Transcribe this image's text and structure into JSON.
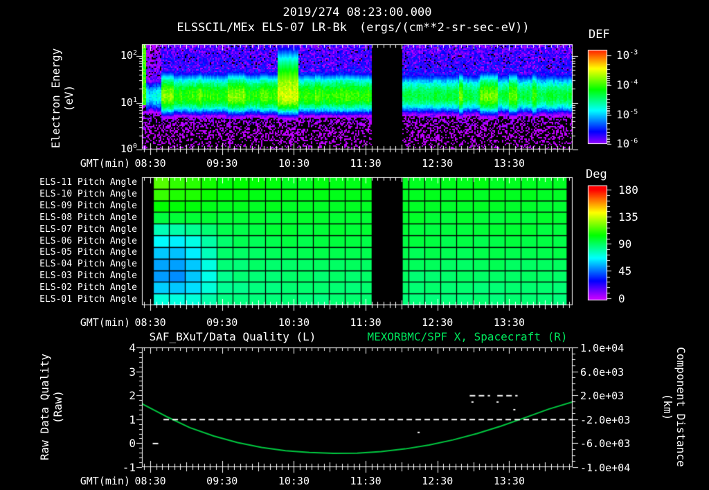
{
  "colors": {
    "background": "#000000",
    "foreground": "#ffffff",
    "title_green": "#00e65c",
    "curve_green": "#00c840",
    "axis": "#ffffff"
  },
  "header": {
    "datetime": "2019/274 08:23:00.000",
    "source": "ELSSCIL/MEx ELS-07 LR-Bk",
    "units": "(ergs/(cm**2-sr-sec-eV))"
  },
  "time_axis": {
    "label": "GMT(min)",
    "start_gmt": "08:23:00",
    "total_minutes": 360,
    "tick_labels": [
      "08:30",
      "09:30",
      "10:30",
      "11:30",
      "12:30",
      "13:30"
    ],
    "tick_minutes": [
      7,
      67,
      127,
      187,
      247,
      307
    ]
  },
  "spectrogram": {
    "ylabel_line1": "Electron Energy",
    "ylabel_line2": "(eV)",
    "ytick_exponents": [
      2,
      1,
      0
    ],
    "colorbar_title": "DEF",
    "colorbar_tick_exponents": [
      -3,
      -4,
      -5,
      -6
    ]
  },
  "pitch": {
    "row_labels": [
      "ELS-11 Pitch Angle",
      "ELS-10 Pitch Angle",
      "ELS-09 Pitch Angle",
      "ELS-08 Pitch Angle",
      "ELS-07 Pitch Angle",
      "ELS-06 Pitch Angle",
      "ELS-05 Pitch Angle",
      "ELS-04 Pitch Angle",
      "ELS-03 Pitch Angle",
      "ELS-02 Pitch Angle",
      "ELS-01 Pitch Angle"
    ],
    "colorbar_title": "Deg",
    "colorbar_ticks": [
      180,
      135,
      90,
      45,
      0
    ]
  },
  "quality": {
    "title_left": "SAF_BXuT/Data Quality (L)",
    "title_right": "MEXORBMC/SPF X, Spacecraft (R)",
    "ylabel_left_line1": "Raw Data Quality",
    "ylabel_left_line2": "(Raw)",
    "ylabel_right_line1": "Component Distance",
    "ylabel_right_line2": "(km)",
    "left_ticks": [
      4,
      3,
      2,
      1,
      0,
      -1
    ],
    "right_tick_labels": [
      "1.0e+04",
      "6.0e+03",
      "2.0e+03",
      "-2.0e+03",
      "-6.0e+03",
      "-1.0e+04"
    ],
    "right_tick_km": [
      10000,
      6000,
      2000,
      -2000,
      -6000,
      -10000
    ]
  },
  "chart_data": [
    {
      "type": "heatmap",
      "title": "ELSSCIL/MEx ELS-07 LR-Bk electron energy spectrogram",
      "xlabel": "GMT(min)",
      "ylabel": "Electron Energy (eV)",
      "x_range_gmt": [
        "08:23",
        "14:23"
      ],
      "ylog_range_ev": [
        1,
        180
      ],
      "value_scale": "log10 DEF ergs/(cm**2-sr-sec-eV)",
      "value_range_log10": [
        -6,
        -3
      ],
      "data_gaps_min": [
        [
          192,
          218
        ]
      ],
      "model": {
        "band_center_ev": 14,
        "band_peak_log10": -4.05,
        "post_gap_band_peak_log10": -4.3,
        "band_sigma_up_log": 0.27,
        "band_sigma_down_log": 0.2,
        "background_log10": -5.6,
        "background_above_ev": 32,
        "noise_floor_below_ev": 6,
        "startup_stripe_min": [
          0,
          3
        ],
        "quiet_interval_min": [
          3,
          16
        ],
        "quiet_band_peak_log10": -4.85,
        "tall_enhancement_min": [
          113,
          131
        ],
        "enhancements_min_peak": [
          [
            15,
            27,
            -3.8
          ],
          [
            45,
            50,
            -3.9
          ],
          [
            72,
            87,
            -3.8
          ],
          [
            100,
            105,
            -3.85
          ],
          [
            113,
            131,
            -3.55
          ],
          [
            145,
            149,
            -3.9
          ],
          [
            162,
            172,
            -3.95
          ],
          [
            265,
            269,
            -3.85
          ],
          [
            282,
            297,
            -3.85
          ],
          [
            307,
            314,
            -3.9
          ],
          [
            326,
            330,
            -3.95
          ]
        ]
      }
    },
    {
      "type": "heatmap",
      "title": "ELS pitch angle panels",
      "xlabel": "GMT(min)",
      "value_units": "deg",
      "value_range": [
        0,
        180
      ],
      "rows": [
        "ELS-11",
        "ELS-10",
        "ELS-09",
        "ELS-08",
        "ELS-07",
        "ELS-06",
        "ELS-05",
        "ELS-04",
        "ELS-03",
        "ELS-02",
        "ELS-01"
      ],
      "columns": 26,
      "blank_min": [
        [
          0,
          9
        ],
        [
          192,
          218
        ],
        [
          355,
          360
        ]
      ],
      "row_profiles_deg": [
        [
          [
            9,
            120
          ],
          [
            20,
            115
          ],
          [
            40,
            110
          ],
          [
            70,
            104
          ],
          [
            120,
            101
          ],
          [
            360,
            100
          ]
        ],
        [
          [
            9,
            115
          ],
          [
            20,
            112
          ],
          [
            40,
            108
          ],
          [
            70,
            103
          ],
          [
            120,
            101
          ],
          [
            360,
            99
          ]
        ],
        [
          [
            9,
            107
          ],
          [
            20,
            104
          ],
          [
            40,
            102
          ],
          [
            70,
            100
          ],
          [
            120,
            99
          ],
          [
            360,
            98
          ]
        ],
        [
          [
            9,
            97
          ],
          [
            20,
            96
          ],
          [
            40,
            97
          ],
          [
            70,
            97
          ],
          [
            120,
            97
          ],
          [
            360,
            97
          ]
        ],
        [
          [
            9,
            82
          ],
          [
            20,
            76
          ],
          [
            40,
            82
          ],
          [
            70,
            94
          ],
          [
            120,
            96
          ],
          [
            360,
            96
          ]
        ],
        [
          [
            9,
            70
          ],
          [
            20,
            62
          ],
          [
            40,
            68
          ],
          [
            70,
            90
          ],
          [
            120,
            94
          ],
          [
            360,
            94
          ]
        ],
        [
          [
            9,
            62
          ],
          [
            20,
            55
          ],
          [
            40,
            60
          ],
          [
            70,
            88
          ],
          [
            120,
            92
          ],
          [
            360,
            93
          ]
        ],
        [
          [
            9,
            58
          ],
          [
            20,
            50
          ],
          [
            40,
            55
          ],
          [
            70,
            86
          ],
          [
            120,
            90
          ],
          [
            360,
            91
          ]
        ],
        [
          [
            9,
            56
          ],
          [
            20,
            48
          ],
          [
            40,
            54
          ],
          [
            70,
            85
          ],
          [
            120,
            88
          ],
          [
            360,
            89
          ]
        ],
        [
          [
            9,
            62
          ],
          [
            20,
            55
          ],
          [
            40,
            60
          ],
          [
            70,
            84
          ],
          [
            120,
            87
          ],
          [
            360,
            88
          ]
        ],
        [
          [
            9,
            74
          ],
          [
            20,
            70
          ],
          [
            40,
            72
          ],
          [
            70,
            84
          ],
          [
            120,
            86
          ],
          [
            360,
            87
          ]
        ]
      ]
    },
    {
      "type": "line",
      "xlabel": "GMT(min)",
      "left_axis": {
        "label": "Raw Data Quality (Raw)",
        "range": [
          -1,
          4
        ]
      },
      "right_axis": {
        "label": "Component Distance (km)",
        "range": [
          -10000,
          10000
        ]
      },
      "series": [
        {
          "name": "SAF_BXuT/Data Quality (L)",
          "axis": "left",
          "color": "#ffffff",
          "style": "dashed",
          "segments": [
            {
              "value": 0,
              "from_min": 9,
              "to_min": 14
            },
            {
              "value": 1,
              "from_min": 18,
              "to_min": 360
            },
            {
              "value": 2,
              "from_min": 274,
              "to_min": 291
            },
            {
              "value": 2,
              "from_min": 297,
              "to_min": 314
            }
          ],
          "dots_min_value": [
            [
              231,
              0.45
            ],
            [
              276,
              1.72
            ],
            [
              297,
              1.72
            ],
            [
              311,
              1.4
            ]
          ]
        },
        {
          "name": "MEXORBMC/SPF X, Spacecraft (R)",
          "axis": "right",
          "color": "#00c840",
          "style": "solid",
          "points_min_km": [
            [
              0,
              600
            ],
            [
              20,
              -1500
            ],
            [
              40,
              -3400
            ],
            [
              60,
              -4800
            ],
            [
              80,
              -5900
            ],
            [
              100,
              -6700
            ],
            [
              120,
              -7250
            ],
            [
              140,
              -7550
            ],
            [
              160,
              -7680
            ],
            [
              180,
              -7650
            ],
            [
              200,
              -7400
            ],
            [
              220,
              -6950
            ],
            [
              240,
              -6300
            ],
            [
              260,
              -5450
            ],
            [
              280,
              -4400
            ],
            [
              300,
              -3150
            ],
            [
              320,
              -1750
            ],
            [
              340,
              -300
            ],
            [
              360,
              900
            ]
          ]
        }
      ]
    }
  ]
}
